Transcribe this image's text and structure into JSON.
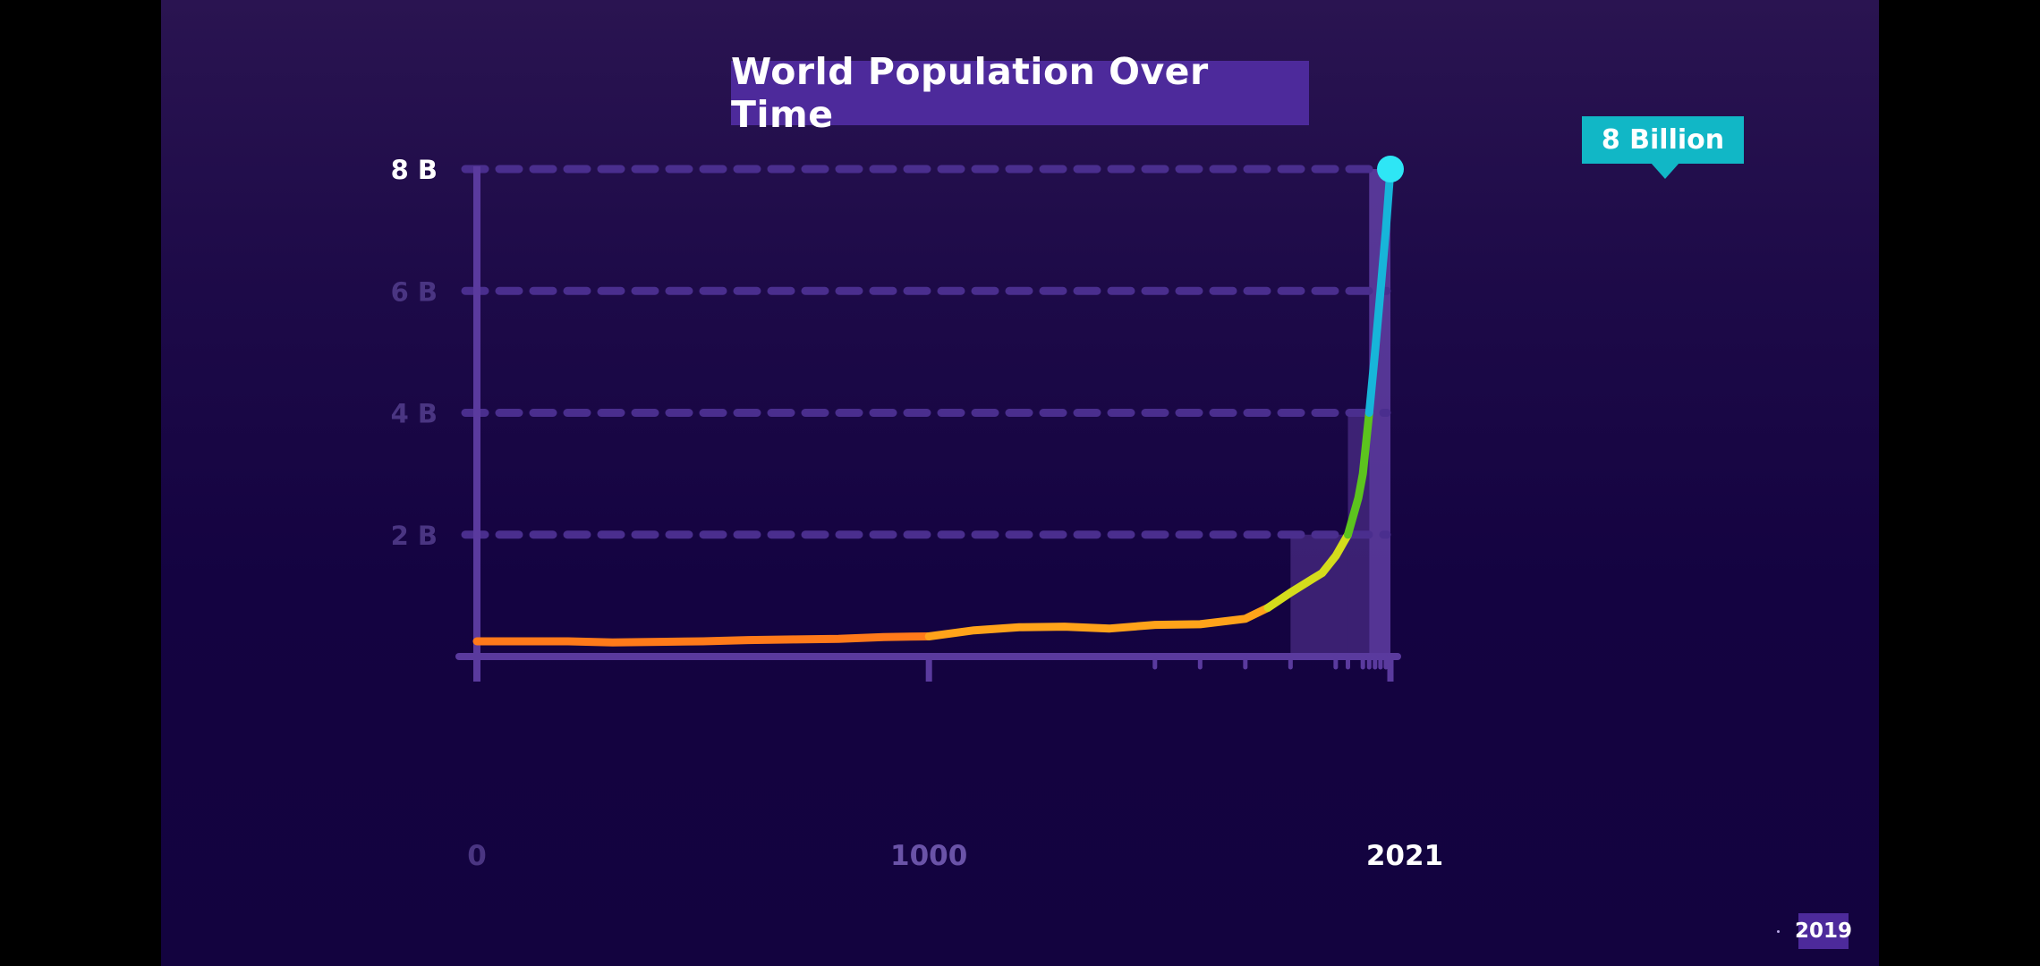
{
  "badge": "2019",
  "callout": "8 Billion",
  "colors": {
    "axis": "#5a3a9e",
    "bar": "#6a45b0",
    "grid": "#4a2e8e",
    "label_bright": "#ffffff",
    "label_dim": "#4a3582",
    "label_mid": "#6a53a8",
    "marker": "#2ee6f5"
  },
  "chart_data": {
    "type": "line",
    "title": "World Population Over Time",
    "xlabel": "",
    "ylabel": "",
    "xlim": [
      0,
      2021
    ],
    "ylim": [
      0,
      8
    ],
    "x_ticks": [
      {
        "value": 0,
        "label": "0"
      },
      {
        "value": 1000,
        "label": "1000"
      },
      {
        "value": 2021,
        "label": "2021"
      }
    ],
    "y_ticks": [
      {
        "value": 2,
        "label": "2 B"
      },
      {
        "value": 4,
        "label": "4 B"
      },
      {
        "value": 6,
        "label": "6 B"
      },
      {
        "value": 8,
        "label": "8 B"
      }
    ],
    "grid": true,
    "series": [
      {
        "x": [
          0,
          100,
          200,
          300,
          400,
          500,
          600,
          700,
          800,
          900,
          1000,
          1100,
          1200,
          1300,
          1400,
          1500,
          1600,
          1700,
          1750,
          1800,
          1850,
          1870,
          1900,
          1927,
          1950,
          1960,
          1974,
          1987,
          1999,
          2011,
          2021
        ],
        "y": [
          0.25,
          0.25,
          0.25,
          0.23,
          0.24,
          0.25,
          0.27,
          0.28,
          0.29,
          0.32,
          0.33,
          0.43,
          0.48,
          0.49,
          0.46,
          0.52,
          0.53,
          0.62,
          0.8,
          1.05,
          1.28,
          1.37,
          1.65,
          2.0,
          2.6,
          3.0,
          4.0,
          5.0,
          6.0,
          7.0,
          8.0
        ],
        "segment_colors": [
          {
            "from": 0,
            "to": 1000,
            "color": "#ff7a1a"
          },
          {
            "from": 1000,
            "to": 1750,
            "color": "#ffa31a"
          },
          {
            "from": 1750,
            "to": 1927,
            "color": "#d4dc1c"
          },
          {
            "from": 1927,
            "to": 1974,
            "color": "#5cc41e"
          },
          {
            "from": 1974,
            "to": 2021,
            "color": "#17b5d9"
          }
        ]
      }
    ],
    "background_bars": [
      {
        "from": 1800,
        "to": 1927,
        "value": 2
      },
      {
        "from": 1927,
        "to": 1974,
        "value": 4
      },
      {
        "from": 1974,
        "to": 2021,
        "value": 8
      }
    ],
    "minor_ticks": [
      1500,
      1600,
      1700,
      1800,
      1900,
      1927,
      1960,
      1974,
      1987,
      1999,
      2011
    ],
    "highlight": {
      "x": 2021,
      "y": 8
    }
  }
}
